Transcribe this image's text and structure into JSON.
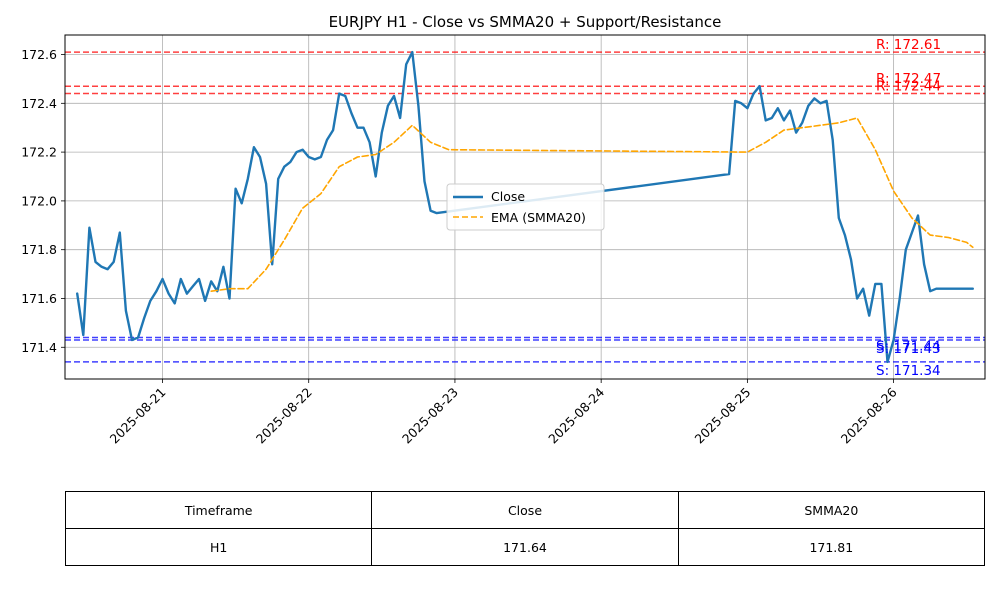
{
  "chart_data": {
    "type": "line",
    "title": "EURJPY H1 - Close vs SMMA20 + Support/Resistance",
    "xlabel": "",
    "ylabel": "",
    "xlim": [
      "2025-08-20 08:00",
      "2025-08-26 15:00"
    ],
    "ylim": [
      171.27,
      172.68
    ],
    "x_ticks": [
      "2025-08-21",
      "2025-08-22",
      "2025-08-23",
      "2025-08-24",
      "2025-08-25",
      "2025-08-26"
    ],
    "y_ticks": [
      "171.4",
      "171.6",
      "171.8",
      "172.0",
      "172.2",
      "172.4",
      "172.6"
    ],
    "grid": true,
    "legend": "center",
    "series": [
      {
        "name": "Close",
        "color": "#1f77b4",
        "style": "solid",
        "x": [
          "2025-08-20 10:00",
          "2025-08-20 11:00",
          "2025-08-20 12:00",
          "2025-08-20 13:00",
          "2025-08-20 14:00",
          "2025-08-20 15:00",
          "2025-08-20 16:00",
          "2025-08-20 17:00",
          "2025-08-20 18:00",
          "2025-08-20 19:00",
          "2025-08-20 20:00",
          "2025-08-20 21:00",
          "2025-08-20 22:00",
          "2025-08-20 23:00",
          "2025-08-21 00:00",
          "2025-08-21 01:00",
          "2025-08-21 02:00",
          "2025-08-21 03:00",
          "2025-08-21 04:00",
          "2025-08-21 05:00",
          "2025-08-21 06:00",
          "2025-08-21 07:00",
          "2025-08-21 08:00",
          "2025-08-21 09:00",
          "2025-08-21 10:00",
          "2025-08-21 11:00",
          "2025-08-21 12:00",
          "2025-08-21 13:00",
          "2025-08-21 14:00",
          "2025-08-21 15:00",
          "2025-08-21 16:00",
          "2025-08-21 17:00",
          "2025-08-21 18:00",
          "2025-08-21 19:00",
          "2025-08-21 20:00",
          "2025-08-21 21:00",
          "2025-08-21 22:00",
          "2025-08-21 23:00",
          "2025-08-22 00:00",
          "2025-08-22 01:00",
          "2025-08-22 02:00",
          "2025-08-22 03:00",
          "2025-08-22 04:00",
          "2025-08-22 05:00",
          "2025-08-22 06:00",
          "2025-08-22 07:00",
          "2025-08-22 08:00",
          "2025-08-22 09:00",
          "2025-08-22 10:00",
          "2025-08-22 11:00",
          "2025-08-22 12:00",
          "2025-08-22 13:00",
          "2025-08-22 14:00",
          "2025-08-22 15:00",
          "2025-08-22 16:00",
          "2025-08-22 17:00",
          "2025-08-22 18:00",
          "2025-08-22 19:00",
          "2025-08-22 20:00",
          "2025-08-22 21:00",
          "2025-08-24 21:00",
          "2025-08-24 22:00",
          "2025-08-24 23:00",
          "2025-08-25 00:00",
          "2025-08-25 01:00",
          "2025-08-25 02:00",
          "2025-08-25 03:00",
          "2025-08-25 04:00",
          "2025-08-25 05:00",
          "2025-08-25 06:00",
          "2025-08-25 07:00",
          "2025-08-25 08:00",
          "2025-08-25 09:00",
          "2025-08-25 10:00",
          "2025-08-25 11:00",
          "2025-08-25 12:00",
          "2025-08-25 13:00",
          "2025-08-25 14:00",
          "2025-08-25 15:00",
          "2025-08-25 16:00",
          "2025-08-25 17:00",
          "2025-08-25 18:00",
          "2025-08-25 19:00",
          "2025-08-25 20:00",
          "2025-08-25 21:00",
          "2025-08-25 22:00",
          "2025-08-25 23:00",
          "2025-08-26 00:00",
          "2025-08-26 01:00",
          "2025-08-26 02:00",
          "2025-08-26 03:00",
          "2025-08-26 04:00",
          "2025-08-26 05:00",
          "2025-08-26 06:00",
          "2025-08-26 07:00",
          "2025-08-26 08:00",
          "2025-08-26 09:00",
          "2025-08-26 10:00",
          "2025-08-26 11:00",
          "2025-08-26 12:00",
          "2025-08-26 13:00"
        ],
        "values": [
          171.62,
          171.45,
          171.89,
          171.75,
          171.73,
          171.72,
          171.75,
          171.87,
          171.55,
          171.43,
          171.44,
          171.52,
          171.59,
          171.63,
          171.68,
          171.62,
          171.58,
          171.68,
          171.62,
          171.65,
          171.68,
          171.59,
          171.67,
          171.63,
          171.73,
          171.6,
          172.05,
          171.99,
          172.09,
          172.22,
          172.18,
          172.07,
          171.74,
          172.09,
          172.14,
          172.16,
          172.2,
          172.21,
          172.18,
          172.17,
          172.18,
          172.25,
          172.29,
          172.44,
          172.43,
          172.36,
          172.3,
          172.3,
          172.24,
          172.1,
          172.28,
          172.39,
          172.43,
          172.34,
          172.56,
          172.61,
          172.39,
          172.08,
          171.96,
          171.95,
          172.11,
          172.41,
          172.4,
          172.38,
          172.44,
          172.47,
          172.33,
          172.34,
          172.38,
          172.33,
          172.37,
          172.28,
          172.32,
          172.39,
          172.42,
          172.4,
          172.41,
          172.25,
          171.93,
          171.86,
          171.76,
          171.6,
          171.64,
          171.53,
          171.66,
          171.66,
          171.34,
          171.43,
          171.6,
          171.8,
          171.87,
          171.94,
          171.74,
          171.63,
          171.64,
          171.64,
          171.64,
          171.64,
          171.64,
          171.64,
          171.64
        ]
      },
      {
        "name": "EMA (SMMA20)",
        "color": "#ffa500",
        "style": "dashed",
        "x": [
          "2025-08-21 08:00",
          "2025-08-21 11:00",
          "2025-08-21 14:00",
          "2025-08-21 17:00",
          "2025-08-21 20:00",
          "2025-08-21 23:00",
          "2025-08-22 02:00",
          "2025-08-22 05:00",
          "2025-08-22 08:00",
          "2025-08-22 11:00",
          "2025-08-22 14:00",
          "2025-08-22 17:00",
          "2025-08-22 20:00",
          "2025-08-22 23:00",
          "2025-08-25 00:00",
          "2025-08-25 03:00",
          "2025-08-25 06:00",
          "2025-08-25 09:00",
          "2025-08-25 12:00",
          "2025-08-25 15:00",
          "2025-08-25 18:00",
          "2025-08-25 21:00",
          "2025-08-26 00:00",
          "2025-08-26 03:00",
          "2025-08-26 06:00",
          "2025-08-26 09:00",
          "2025-08-26 12:00",
          "2025-08-26 13:00"
        ],
        "values": [
          171.63,
          171.64,
          171.64,
          171.72,
          171.84,
          171.97,
          172.03,
          172.14,
          172.18,
          172.19,
          172.24,
          172.31,
          172.24,
          172.21,
          172.2,
          172.24,
          172.29,
          172.3,
          172.31,
          172.32,
          172.34,
          172.21,
          172.04,
          171.93,
          171.86,
          171.85,
          171.83,
          171.81
        ]
      }
    ],
    "levels": [
      {
        "type": "resistance",
        "value": 172.61,
        "label": "R: 172.61",
        "color": "#ff0000"
      },
      {
        "type": "resistance",
        "value": 172.47,
        "label": "R: 172.47",
        "color": "#ff0000"
      },
      {
        "type": "resistance",
        "value": 172.44,
        "label": "R: 172.44",
        "color": "#ff0000"
      },
      {
        "type": "support",
        "value": 171.44,
        "label": "S: 171.44",
        "color": "#0000ff"
      },
      {
        "type": "support",
        "value": 171.43,
        "label": "S: 171.43",
        "color": "#0000ff"
      },
      {
        "type": "support",
        "value": 171.34,
        "label": "S: 171.34",
        "color": "#0000ff"
      }
    ]
  },
  "table": {
    "headers": [
      "Timeframe",
      "Close",
      "SMMA20"
    ],
    "rows": [
      [
        "H1",
        "171.64",
        "171.81"
      ]
    ]
  }
}
